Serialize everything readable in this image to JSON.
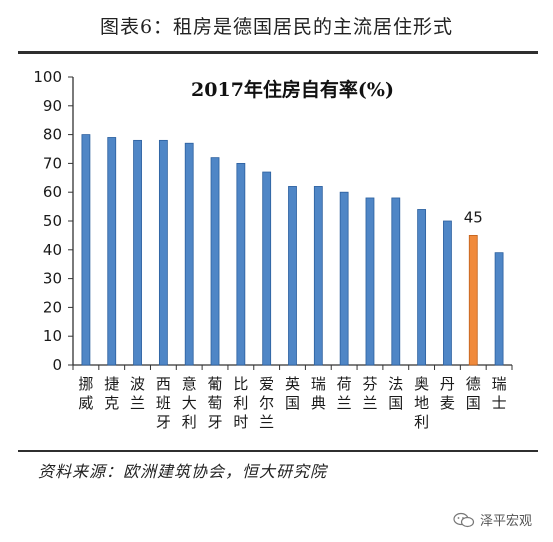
{
  "figure": {
    "title": "图表6：租房是德国居民的主流居住形式",
    "source": "资料来源：欧洲建筑协会，恒大研究院",
    "watermark": "泽平宏观"
  },
  "colors": {
    "bar": "#4f86c6",
    "bar_edge": "#2b5f9e",
    "highlight": "#f08a3c",
    "highlight_edge": "#c0601a",
    "axis": "#333333"
  },
  "chart_data": {
    "type": "bar",
    "title": "2017年住房自有率(%)",
    "xlabel": "",
    "ylabel": "",
    "ylim": [
      0,
      100
    ],
    "yticks": [
      0,
      10,
      20,
      30,
      40,
      50,
      60,
      70,
      80,
      90,
      100
    ],
    "categories": [
      "挪威",
      "捷克",
      "波兰",
      "西班牙",
      "意大利",
      "葡萄牙",
      "比利时",
      "爱尔兰",
      "英国",
      "瑞典",
      "荷兰",
      "芬兰",
      "法国",
      "奥地利",
      "丹麦",
      "德国",
      "瑞士"
    ],
    "values": [
      80,
      79,
      78,
      78,
      77,
      72,
      70,
      67,
      62,
      62,
      60,
      58,
      58,
      54,
      50,
      45,
      39
    ],
    "highlight_category": "德国",
    "data_labels": [
      {
        "category": "德国",
        "text": "45"
      }
    ],
    "grid": false,
    "legend": "none"
  }
}
